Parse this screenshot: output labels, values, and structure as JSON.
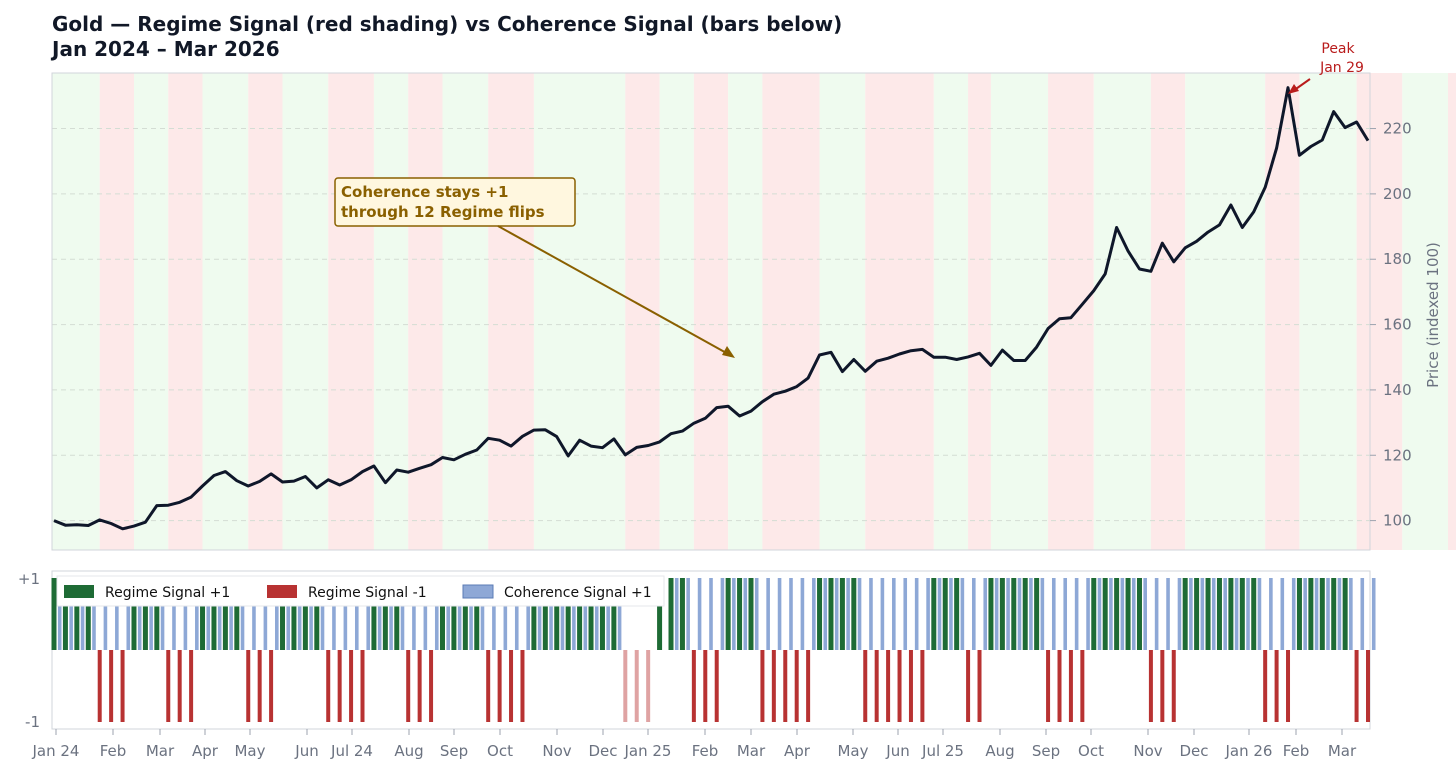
{
  "title_line1": "Gold — Regime Signal (red shading) vs Coherence Signal (bars below)",
  "title_line2": "Jan 2024 – Mar 2026",
  "colors": {
    "price_line": "#0f172a",
    "regime_pos": "#1e6b35",
    "regime_neg": "#b83232",
    "coherence": "#8ea8d6",
    "shade_pos": "#effbef",
    "shade_neg": "#fde9e9",
    "annotation": "#8a6000",
    "peak": "#b91c1c"
  },
  "chart_data": [
    {
      "type": "line",
      "y": [
        100,
        98.6,
        98.7,
        98.5,
        100.2,
        99.1,
        97.5,
        98.3,
        99.5,
        104.6,
        104.7,
        105.6,
        107.2,
        110.6,
        113.8,
        115.0,
        112.2,
        110.6,
        112.0,
        114.3,
        111.8,
        112.1,
        113.5,
        110.0,
        112.5,
        110.9,
        112.5,
        115.0,
        116.7,
        111.6,
        115.5,
        114.8,
        116.0,
        117.1,
        119.3,
        118.6,
        120.3,
        121.6,
        125.2,
        124.6,
        122.8,
        125.8,
        127.7,
        127.8,
        125.7,
        119.8,
        124.6,
        122.8,
        122.3,
        125.0,
        120.1,
        122.4,
        123.0,
        124.1,
        126.6,
        127.4,
        129.8,
        131.3,
        134.6,
        135.0,
        132.0,
        133.5,
        136.4,
        138.7,
        139.6,
        141.0,
        143.6,
        150.7,
        151.5,
        145.6,
        149.3,
        145.7,
        148.8,
        149.7,
        151.0,
        152.0,
        152.4,
        150.0,
        150.0,
        149.3,
        150.1,
        151.2,
        147.5,
        152.2,
        149.0,
        149.0,
        153.1,
        158.8,
        161.8,
        162.1,
        166.2,
        170.4,
        175.5,
        189.7,
        182.5,
        177.0,
        176.3,
        184.9,
        179.2,
        183.5,
        185.5,
        188.3,
        190.5,
        196.6,
        189.7,
        194.5,
        202.0,
        214.0,
        232.5,
        211.8,
        214.5,
        216.5,
        225.2,
        220.3,
        222.0,
        216.3
      ],
      "ylabel": "Price (indexed 100)",
      "y_ticks": [
        "100",
        "120",
        "140",
        "160",
        "180",
        "200",
        "220"
      ],
      "ylim": [
        91,
        237
      ],
      "grid": true,
      "annotations": [
        {
          "text_line1": "Coherence stays +1",
          "text_line2": "through 12 Regime flips",
          "points_to": "price line, Feb 2025"
        },
        {
          "text_line1": "Peak",
          "text_line2": "Jan 29",
          "points_to": "price high"
        }
      ]
    },
    {
      "type": "bar",
      "series": [
        {
          "name": "Regime Signal +1"
        },
        {
          "name": "Regime Signal -1"
        },
        {
          "name": "Coherence Signal +1"
        }
      ],
      "y_ticks": [
        "+1",
        "-1"
      ],
      "ylim": [
        -1,
        1
      ],
      "legend": "top-left",
      "coherence_value": 1,
      "coherence_gap_months": "Dec – Jan 25"
    }
  ],
  "regime_periods": [
    {
      "regime": 1,
      "weeks": 4
    },
    {
      "regime": -1,
      "weeks": 3
    },
    {
      "regime": 1,
      "weeks": 3
    },
    {
      "regime": -1,
      "weeks": 3
    },
    {
      "regime": 1,
      "weeks": 4
    },
    {
      "regime": -1,
      "weeks": 3
    },
    {
      "regime": 1,
      "weeks": 4
    },
    {
      "regime": -1,
      "weeks": 4
    },
    {
      "regime": 1,
      "weeks": 3
    },
    {
      "regime": -1,
      "weeks": 3
    },
    {
      "regime": 1,
      "weeks": 4
    },
    {
      "regime": -1,
      "weeks": 4
    },
    {
      "regime": 1,
      "weeks": 8
    },
    {
      "regime": -1,
      "weeks": 3
    },
    {
      "regime": 1,
      "weeks": 3
    },
    {
      "regime": -1,
      "weeks": 3
    },
    {
      "regime": 1,
      "weeks": 3
    },
    {
      "regime": -1,
      "weeks": 5
    },
    {
      "regime": 1,
      "weeks": 4
    },
    {
      "regime": -1,
      "weeks": 6
    },
    {
      "regime": 1,
      "weeks": 3
    },
    {
      "regime": -1,
      "weeks": 2
    },
    {
      "regime": 1,
      "weeks": 5
    },
    {
      "regime": -1,
      "weeks": 4
    },
    {
      "regime": 1,
      "weeks": 5
    },
    {
      "regime": -1,
      "weeks": 3
    },
    {
      "regime": 1,
      "weeks": 7
    },
    {
      "regime": -1,
      "weeks": 3
    },
    {
      "regime": 1,
      "weeks": 5
    },
    {
      "regime": -1,
      "weeks": 4
    },
    {
      "regime": 1,
      "weeks": 4
    },
    {
      "regime": -1,
      "weeks": 8
    },
    {
      "regime": 1,
      "weeks": 4
    },
    {
      "regime": -1,
      "weeks": 3
    },
    {
      "regime": 1,
      "weeks": 4
    },
    {
      "regime": -1,
      "weeks": 4
    },
    {
      "regime": 1,
      "weeks": 3
    },
    {
      "regime": -1,
      "weeks": 2
    },
    {
      "regime": 1,
      "weeks": 4
    },
    {
      "regime": -1,
      "weeks": 2
    }
  ],
  "x_ticks": [
    "Jan 24",
    "Feb",
    "Mar",
    "Apr",
    "May",
    "Jun",
    "Jul 24",
    "Aug",
    "Sep",
    "Oct",
    "Nov",
    "Dec",
    "Jan 25",
    "Feb",
    "Mar",
    "Apr",
    "May",
    "Jun",
    "Jul 25",
    "Aug",
    "Sep",
    "Oct",
    "Nov",
    "Dec",
    "Jan 26",
    "Feb",
    "Mar"
  ]
}
